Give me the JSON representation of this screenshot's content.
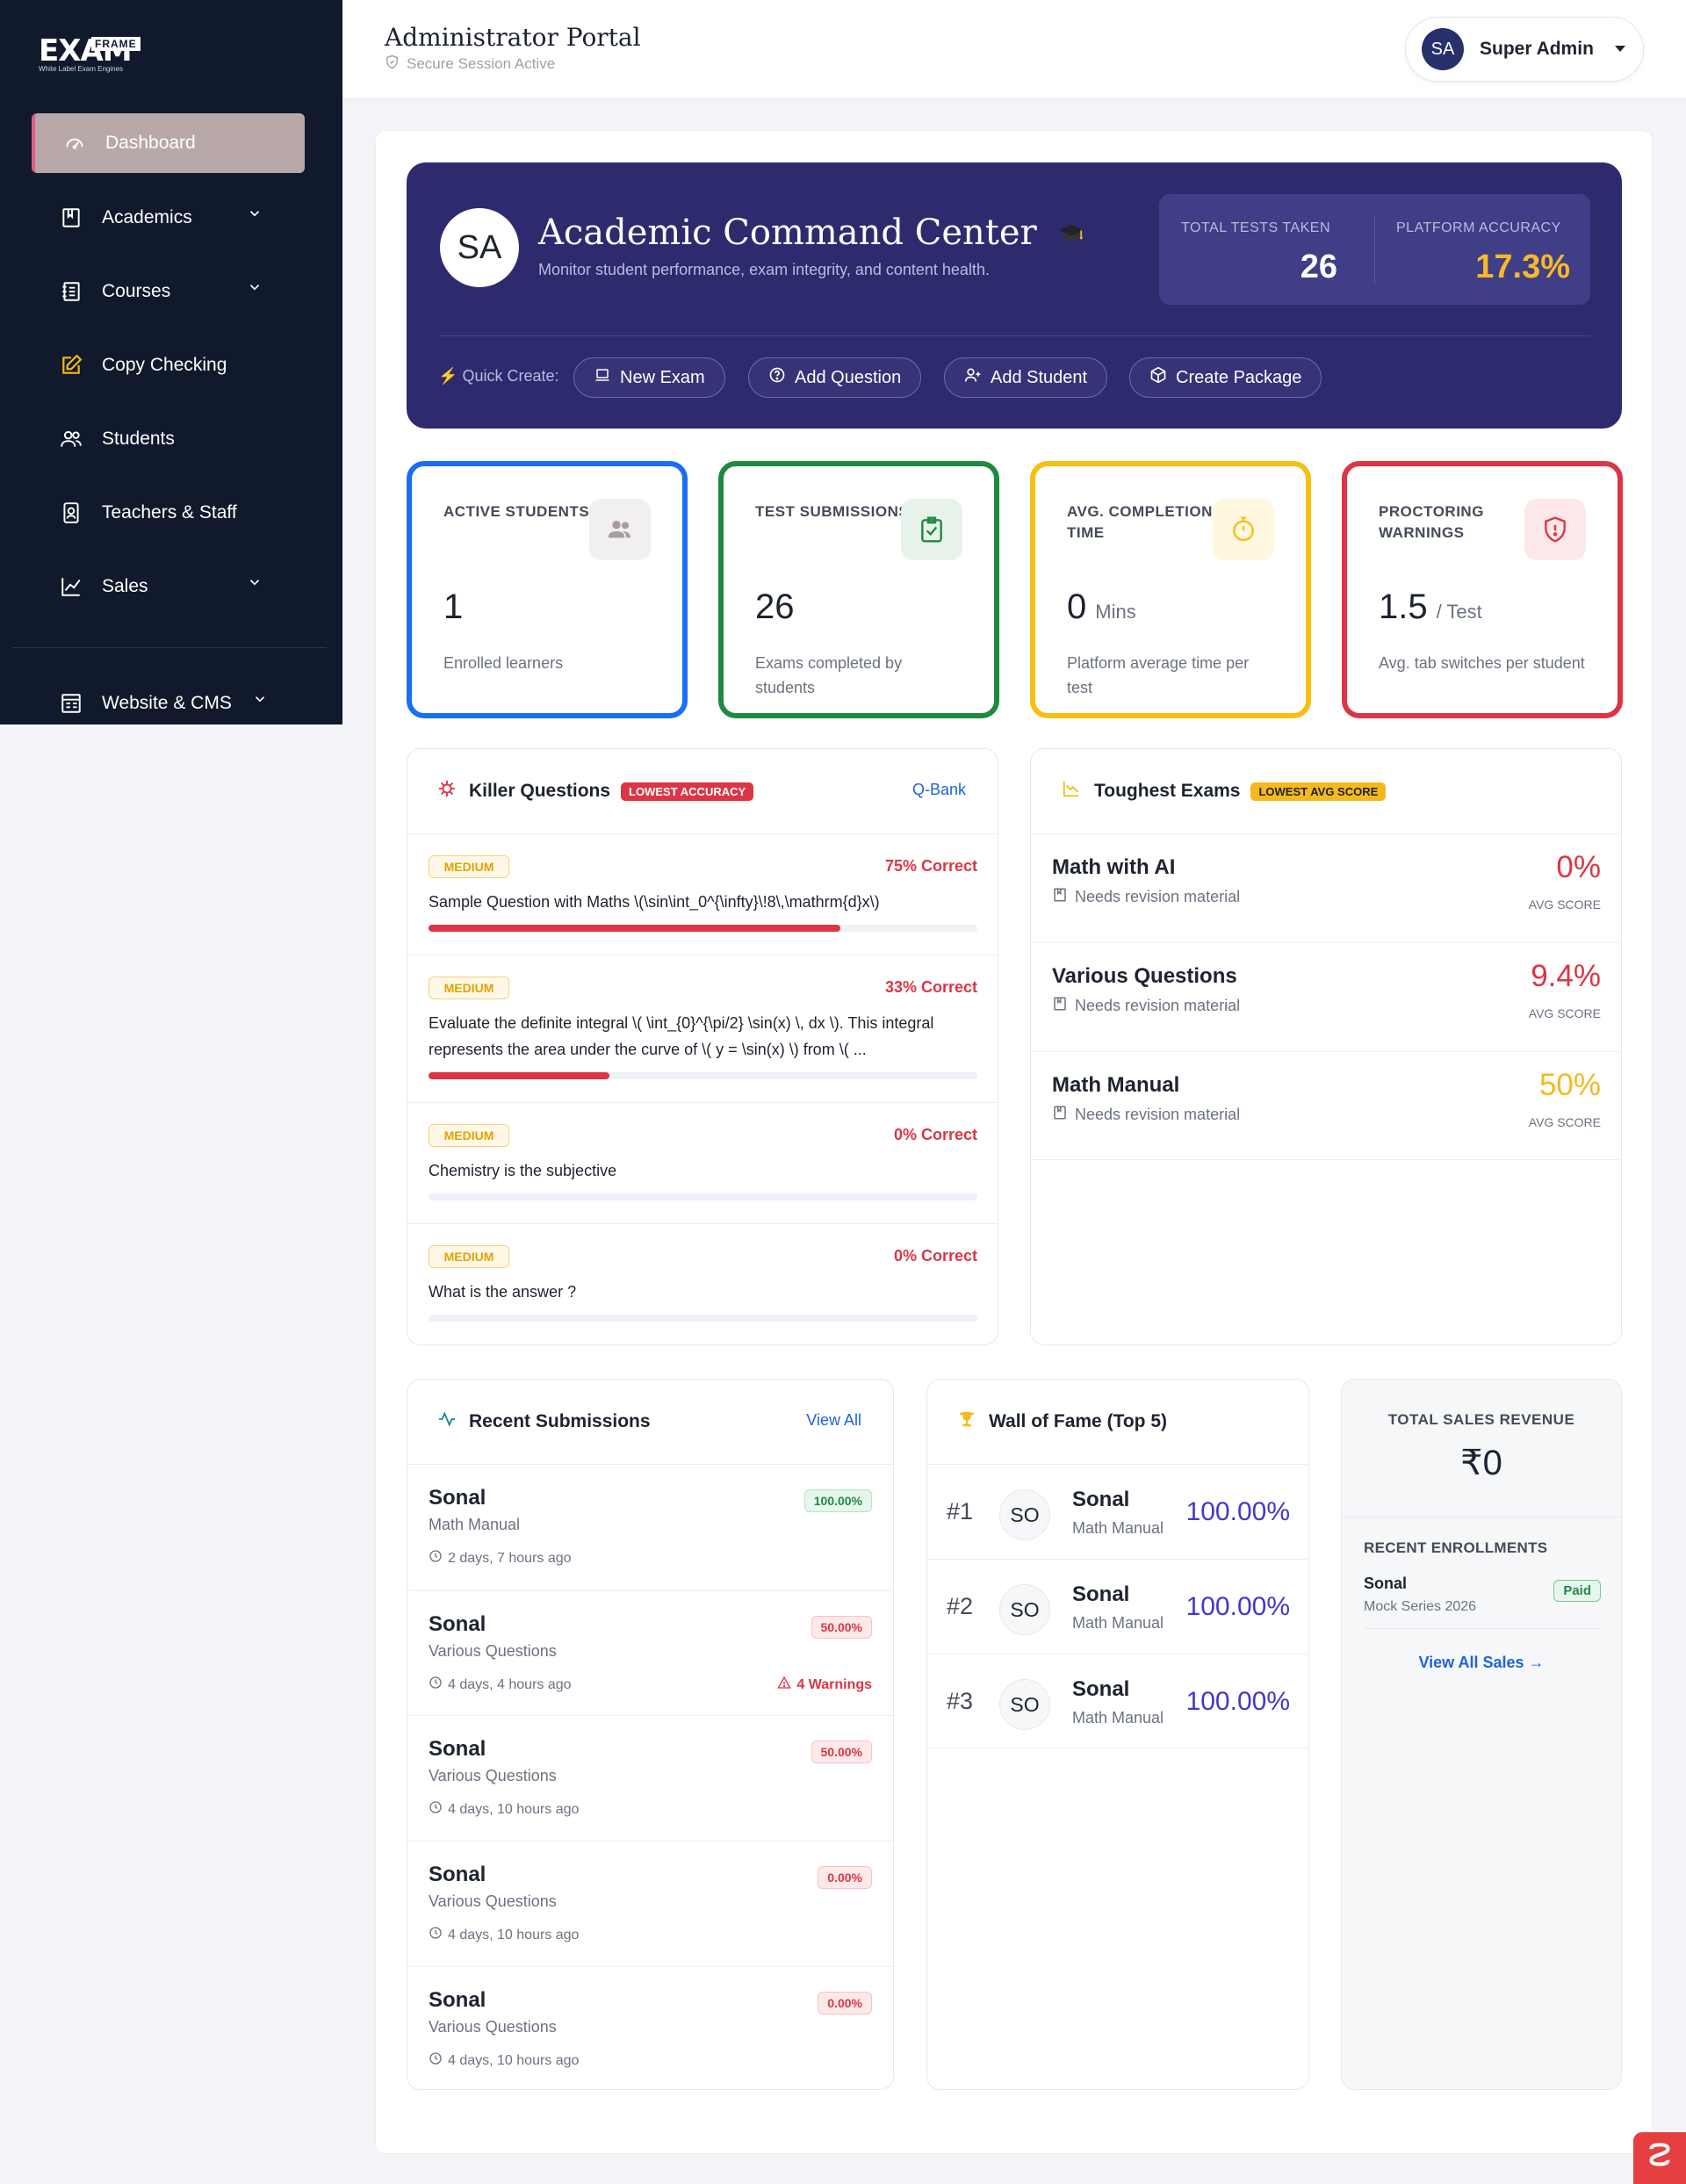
{
  "brand": {
    "name": "EXAM",
    "frame": "FRAME",
    "tagline": "White Label Exam Engines"
  },
  "sidebar": {
    "items": [
      {
        "label": "Dashboard",
        "icon": "gauge-icon",
        "active": true
      },
      {
        "label": "Academics",
        "icon": "book-icon",
        "expandable": true
      },
      {
        "label": "Courses",
        "icon": "notebook-icon",
        "expandable": true
      },
      {
        "label": "Copy Checking",
        "icon": "edit-icon"
      },
      {
        "label": "Students",
        "icon": "users-icon"
      },
      {
        "label": "Teachers & Staff",
        "icon": "id-badge-icon"
      },
      {
        "label": "Sales",
        "icon": "chart-line-icon",
        "expandable": true
      },
      {
        "label": "Website & CMS",
        "icon": "layout-icon",
        "expandable": true
      }
    ]
  },
  "header": {
    "title": "Administrator Portal",
    "subtitle": "Secure Session Active",
    "user": {
      "initials": "SA",
      "name": "Super Admin"
    }
  },
  "hero": {
    "initials": "SA",
    "title": "Academic Command Center",
    "subtitle": "Monitor student performance, exam integrity, and content health.",
    "stats": [
      {
        "label": "TOTAL TESTS TAKEN",
        "value": "26"
      },
      {
        "label": "PLATFORM ACCURACY",
        "value": "17.3%"
      }
    ],
    "quick_create_label": "Quick Create:",
    "quick_create": [
      "New Exam",
      "Add Question",
      "Add Student",
      "Create Package"
    ]
  },
  "stats": [
    {
      "label": "ACTIVE STUDENTS",
      "value": "1",
      "unit": "",
      "desc": "Enrolled learners",
      "color": "#1a6ef5"
    },
    {
      "label": "TEST SUBMISSIONS",
      "value": "26",
      "unit": "",
      "desc": "Exams completed by students",
      "color": "#1f8a3f"
    },
    {
      "label": "AVG. COMPLETION TIME",
      "value": "0",
      "unit": "Mins",
      "desc": "Platform average time per test",
      "color": "#f5c014"
    },
    {
      "label": "PROCTORING WARNINGS",
      "value": "1.5",
      "unit": "/ Test",
      "desc": "Avg. tab switches per student",
      "color": "#dc3545"
    }
  ],
  "killer_questions": {
    "title": "Killer Questions",
    "badge": "LOWEST ACCURACY",
    "link": "Q-Bank",
    "items": [
      {
        "difficulty": "MEDIUM",
        "correct": "75% Correct",
        "correct_pct": 75,
        "text": "Sample Question with Maths \\(\\sin\\int_0^{\\infty}\\!8\\,\\mathrm{d}x\\)"
      },
      {
        "difficulty": "MEDIUM",
        "correct": "33% Correct",
        "correct_pct": 33,
        "text": "Evaluate the definite integral \\( \\int_{0}^{\\pi/2} \\sin(x) \\, dx \\). This integral represents the area under the curve of \\( y = \\sin(x) \\) from \\( ..."
      },
      {
        "difficulty": "MEDIUM",
        "correct": "0% Correct",
        "correct_pct": 0,
        "text": "Chemistry is the subjective"
      },
      {
        "difficulty": "MEDIUM",
        "correct": "0% Correct",
        "correct_pct": 0,
        "text": "What is the answer ?"
      }
    ]
  },
  "toughest_exams": {
    "title": "Toughest Exams",
    "badge": "LOWEST AVG SCORE",
    "score_label": "AVG SCORE",
    "items": [
      {
        "name": "Math with AI",
        "note": "Needs revision material",
        "score": "0%",
        "color": "#dc3545"
      },
      {
        "name": "Various Questions",
        "note": "Needs revision material",
        "score": "9.4%",
        "color": "#dc3545"
      },
      {
        "name": "Math Manual",
        "note": "Needs revision material",
        "score": "50%",
        "color": "#f5b91f"
      }
    ]
  },
  "recent_submissions": {
    "title": "Recent Submissions",
    "link": "View All",
    "items": [
      {
        "name": "Sonal",
        "exam": "Math Manual",
        "time": "2 days, 7 hours ago",
        "score": "100.00%",
        "status": "good",
        "warnings": ""
      },
      {
        "name": "Sonal",
        "exam": "Various Questions",
        "time": "4 days, 4 hours ago",
        "score": "50.00%",
        "status": "bad",
        "warnings": "4 Warnings"
      },
      {
        "name": "Sonal",
        "exam": "Various Questions",
        "time": "4 days, 10 hours ago",
        "score": "50.00%",
        "status": "bad",
        "warnings": ""
      },
      {
        "name": "Sonal",
        "exam": "Various Questions",
        "time": "4 days, 10 hours ago",
        "score": "0.00%",
        "status": "bad",
        "warnings": ""
      },
      {
        "name": "Sonal",
        "exam": "Various Questions",
        "time": "4 days, 10 hours ago",
        "score": "0.00%",
        "status": "bad",
        "warnings": ""
      }
    ]
  },
  "wall_of_fame": {
    "title": "Wall of Fame (Top 5)",
    "items": [
      {
        "rank": "#1",
        "initials": "SO",
        "name": "Sonal",
        "exam": "Math Manual",
        "score": "100.00%"
      },
      {
        "rank": "#2",
        "initials": "SO",
        "name": "Sonal",
        "exam": "Math Manual",
        "score": "100.00%"
      },
      {
        "rank": "#3",
        "initials": "SO",
        "name": "Sonal",
        "exam": "Math Manual",
        "score": "100.00%"
      }
    ]
  },
  "sales": {
    "title": "TOTAL SALES REVENUE",
    "value": "₹0",
    "recent_title": "RECENT ENROLLMENTS",
    "enrollments": [
      {
        "name": "Sonal",
        "package": "Mock Series 2026",
        "status": "Paid"
      }
    ],
    "link": "View All Sales →"
  }
}
